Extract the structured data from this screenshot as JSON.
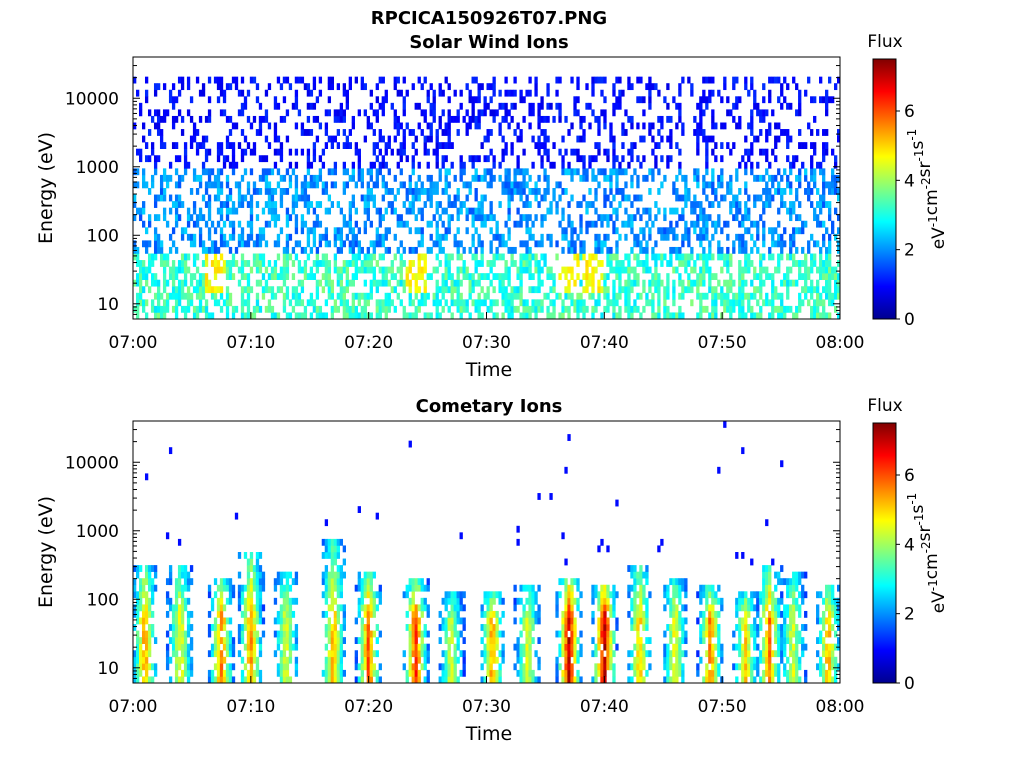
{
  "figure_title": "RPCICA150926T07.PNG",
  "chart_data": [
    {
      "type": "heatmap",
      "title": "Solar Wind Ions",
      "xlabel": "Time",
      "ylabel": "Energy (eV)",
      "y_scale": "log",
      "xlim": [
        "07:00",
        "08:00"
      ],
      "ylim": [
        6,
        40000
      ],
      "x_ticks": [
        "07:00",
        "07:10",
        "07:20",
        "07:30",
        "07:40",
        "07:50",
        "08:00"
      ],
      "y_ticks": [
        "10",
        "100",
        "1000",
        "10000"
      ],
      "colorbar": {
        "label": "Flux",
        "units": "eV-1cm-2sr-1s-1",
        "range": [
          0,
          7.5
        ],
        "ticks": [
          "0",
          "2",
          "4",
          "6"
        ]
      },
      "grid": false,
      "description_bands": [
        {
          "energy_range_eV": [
            6,
            60
          ],
          "typical_flux": 3.2,
          "peak_flux": 5.0,
          "peak_times": [
            "07:07",
            "07:24",
            "07:37",
            "07:39"
          ]
        },
        {
          "energy_range_eV": [
            60,
            1000
          ],
          "typical_flux": 2.0
        },
        {
          "energy_range_eV": [
            1000,
            20000
          ],
          "typical_flux": 1.0
        }
      ]
    },
    {
      "type": "heatmap",
      "title": "Cometary Ions",
      "xlabel": "Time",
      "ylabel": "Energy (eV)",
      "y_scale": "log",
      "xlim": [
        "07:00",
        "08:00"
      ],
      "ylim": [
        6,
        40000
      ],
      "x_ticks": [
        "07:00",
        "07:10",
        "07:20",
        "07:30",
        "07:40",
        "07:50",
        "08:00"
      ],
      "y_ticks": [
        "10",
        "100",
        "1000",
        "10000"
      ],
      "colorbar": {
        "label": "Flux",
        "units": "eV-1cm-2sr-1s-1",
        "range": [
          0,
          7.5
        ],
        "ticks": [
          "0",
          "2",
          "4",
          "6"
        ]
      },
      "grid": false,
      "bursts": [
        {
          "time": "07:01",
          "peak_flux": 5.5,
          "top_eV": 350
        },
        {
          "time": "07:04",
          "peak_flux": 4.8,
          "top_eV": 300
        },
        {
          "time": "07:07.5",
          "peak_flux": 5.8,
          "top_eV": 200
        },
        {
          "time": "07:10",
          "peak_flux": 5.6,
          "top_eV": 450
        },
        {
          "time": "07:13",
          "peak_flux": 4.6,
          "top_eV": 250
        },
        {
          "time": "07:17",
          "peak_flux": 5.4,
          "top_eV": 700
        },
        {
          "time": "07:20",
          "peak_flux": 6.0,
          "top_eV": 250
        },
        {
          "time": "07:24",
          "peak_flux": 6.3,
          "top_eV": 200
        },
        {
          "time": "07:27",
          "peak_flux": 4.4,
          "top_eV": 120
        },
        {
          "time": "07:30.5",
          "peak_flux": 5.6,
          "top_eV": 120
        },
        {
          "time": "07:33.5",
          "peak_flux": 4.6,
          "top_eV": 150
        },
        {
          "time": "07:37",
          "peak_flux": 7.0,
          "top_eV": 200
        },
        {
          "time": "07:40",
          "peak_flux": 7.2,
          "top_eV": 180
        },
        {
          "time": "07:43",
          "peak_flux": 5.2,
          "top_eV": 300
        },
        {
          "time": "07:46",
          "peak_flux": 4.8,
          "top_eV": 200
        },
        {
          "time": "07:49",
          "peak_flux": 5.8,
          "top_eV": 150
        },
        {
          "time": "07:52",
          "peak_flux": 5.0,
          "top_eV": 120
        },
        {
          "time": "07:54",
          "peak_flux": 5.8,
          "top_eV": 300
        },
        {
          "time": "07:56",
          "peak_flux": 4.5,
          "top_eV": 250
        },
        {
          "time": "07:59",
          "peak_flux": 5.4,
          "top_eV": 150
        }
      ]
    }
  ],
  "colors": {
    "colormap": [
      "#00008f",
      "#0000ff",
      "#0080ff",
      "#00ffff",
      "#80ff80",
      "#ffff00",
      "#ff8000",
      "#ff0000",
      "#800000"
    ],
    "axis": "#000000",
    "background": "#ffffff"
  }
}
